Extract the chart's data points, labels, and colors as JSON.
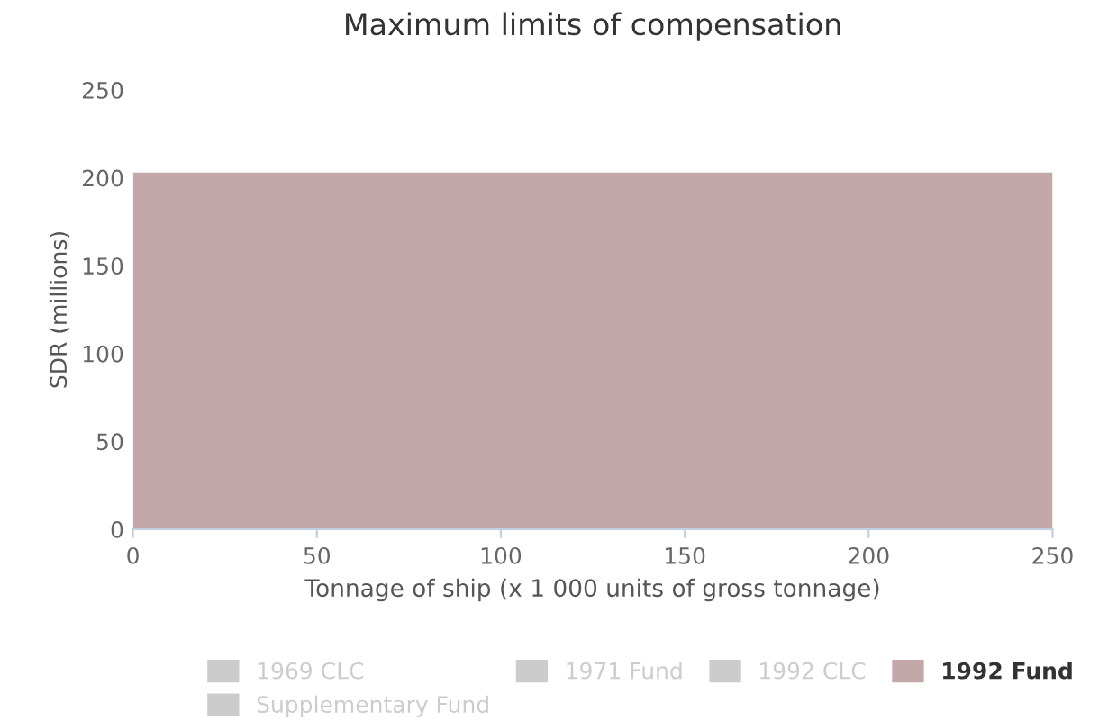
{
  "chart_data": {
    "type": "area",
    "title": "Maximum limits of compensation",
    "xlabel": "Tonnage of ship (x 1 000 units of gross tonnage)",
    "ylabel": "SDR (millions)",
    "x": [
      0,
      250
    ],
    "series": [
      {
        "name": "1969 CLC",
        "color": "#cccccc",
        "values": [
          null,
          null
        ]
      },
      {
        "name": "1971 Fund",
        "color": "#cccccc",
        "values": [
          null,
          null
        ]
      },
      {
        "name": "1992 CLC",
        "color": "#cccccc",
        "values": [
          null,
          null
        ]
      },
      {
        "name": "1992 Fund",
        "color": "#c4a8a9",
        "values": [
          203,
          203
        ]
      },
      {
        "name": "Supplementary Fund",
        "color": "#cccccc",
        "values": [
          null,
          null
        ]
      }
    ],
    "xlim": [
      0,
      250
    ],
    "xticks": [
      0,
      50,
      100,
      150,
      200,
      250
    ],
    "ylim": [
      0,
      250
    ],
    "yticks": [
      0,
      50,
      100,
      150,
      200,
      250
    ],
    "grid": false,
    "legend": "bottom"
  }
}
